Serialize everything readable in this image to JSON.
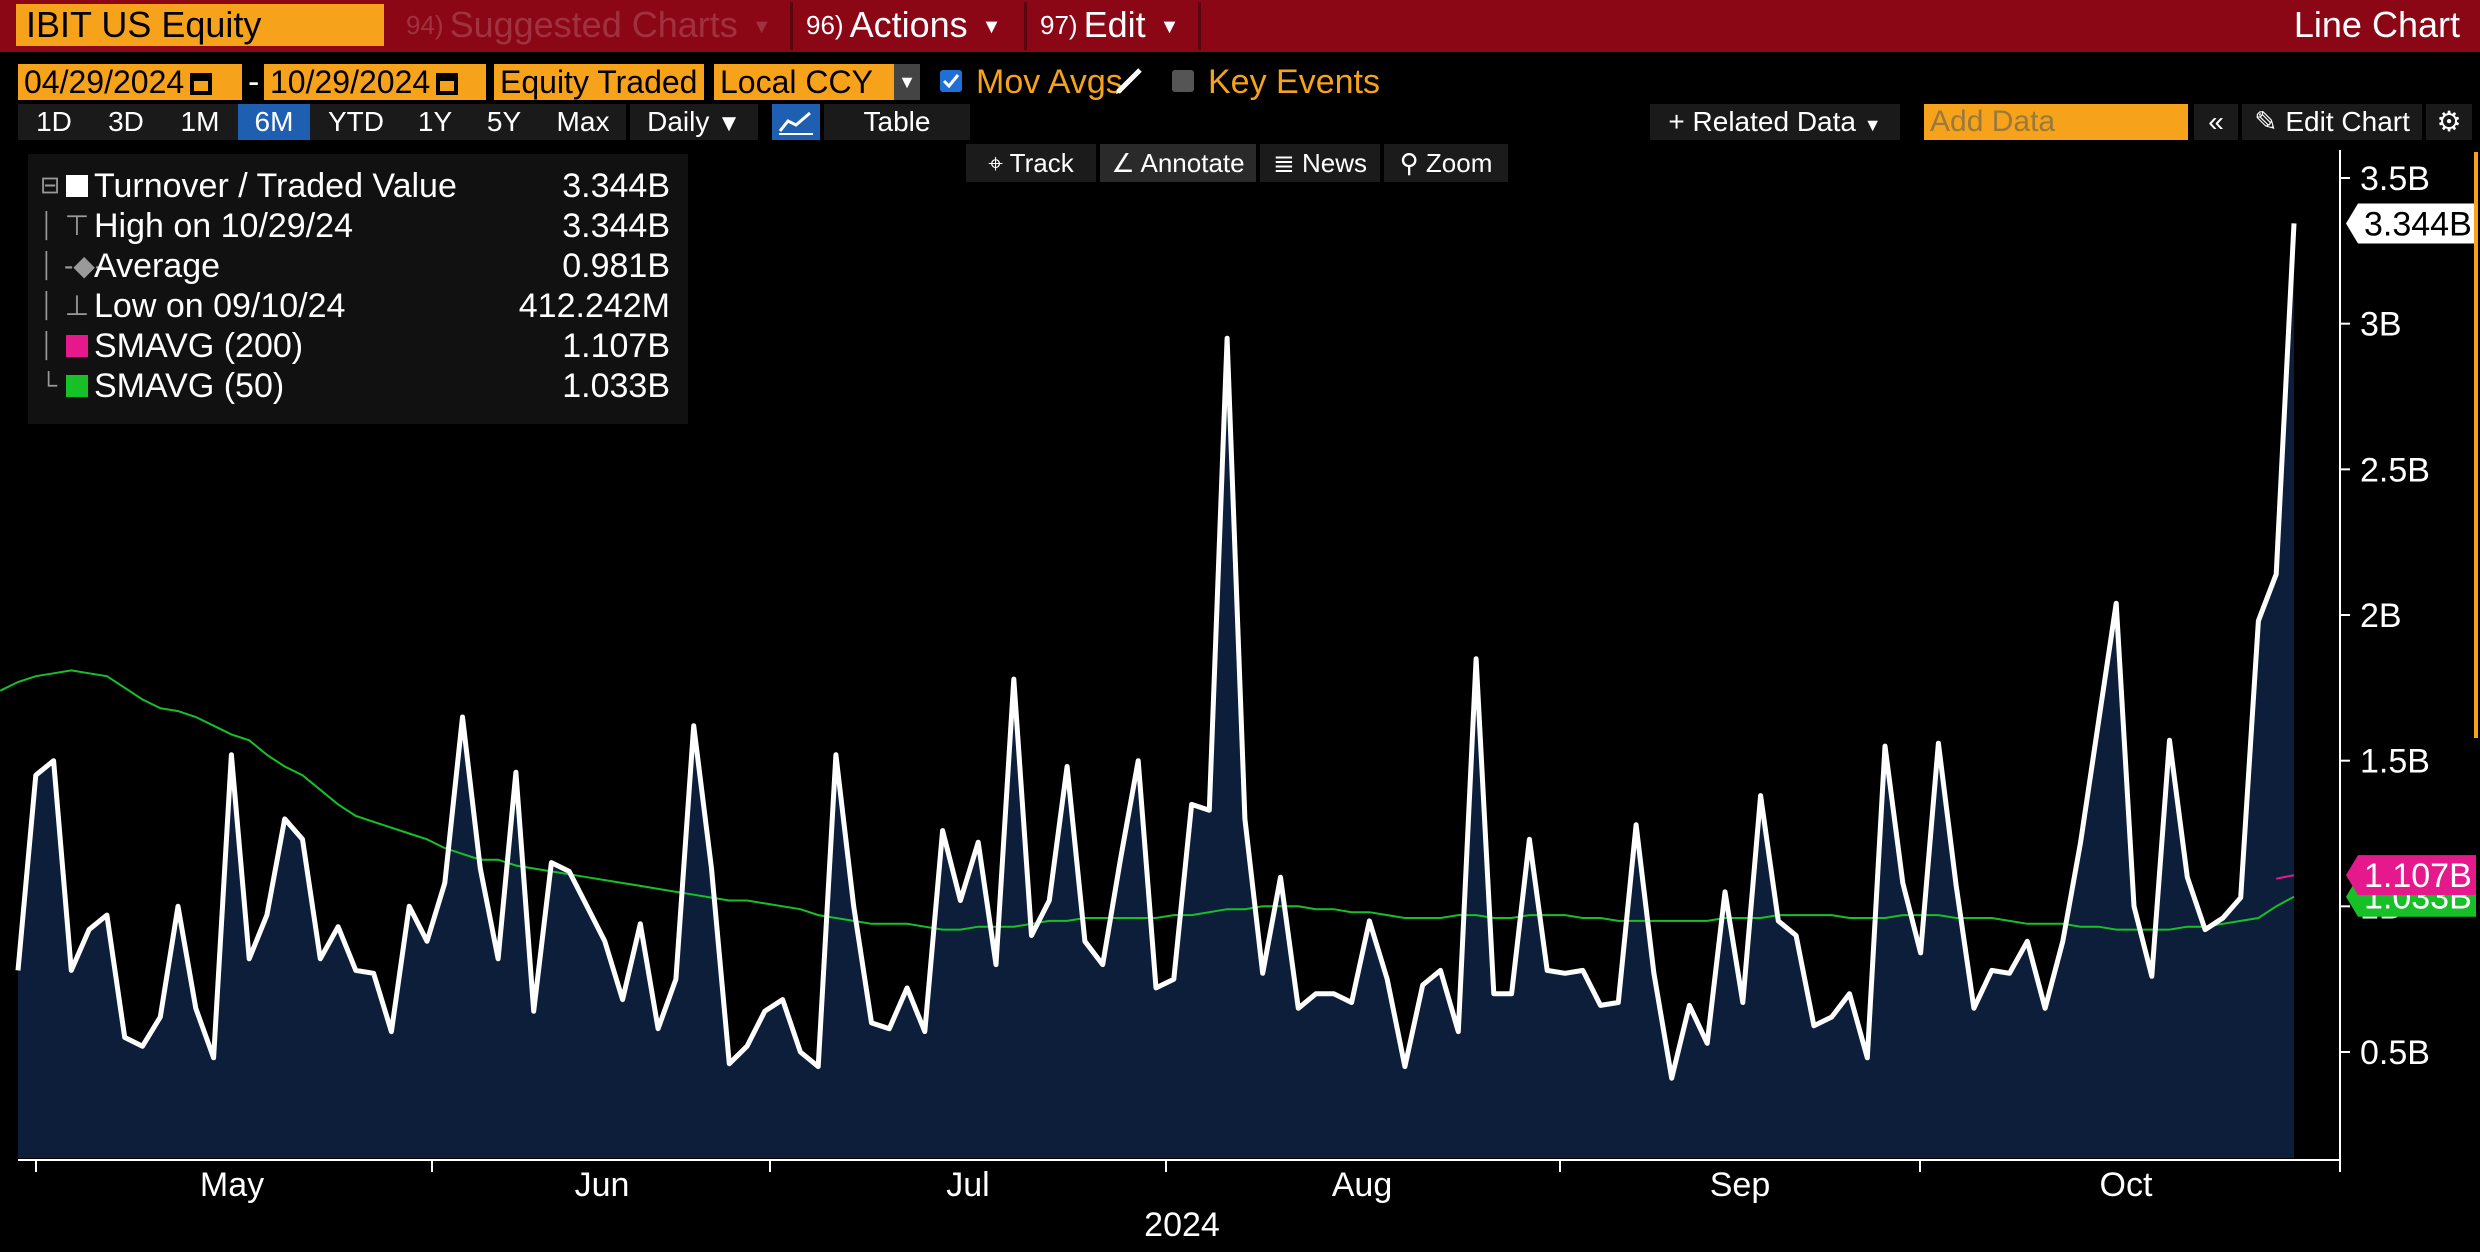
{
  "header": {
    "ticker": "IBIT US Equity",
    "suggested_num": "94)",
    "suggested_label": "Suggested Charts",
    "actions_num": "96)",
    "actions_label": "Actions",
    "edit_num": "97)",
    "edit_label": "Edit",
    "chart_type": "Line Chart"
  },
  "controls": {
    "start_date": "04/29/2024",
    "date_sep": "-",
    "end_date": "10/29/2024",
    "field": "Equity Traded",
    "currency": "Local CCY",
    "mov_avgs_label": "Mov Avgs",
    "mov_avgs_checked": true,
    "key_events_label": "Key Events",
    "key_events_checked": false
  },
  "periods": [
    "1D",
    "3D",
    "1M",
    "6M",
    "YTD",
    "1Y",
    "5Y",
    "Max"
  ],
  "selected_period": "6M",
  "frequency": "Daily",
  "table_label": "Table",
  "related_data_label": "Related Data",
  "add_data_placeholder": "Add Data",
  "edit_chart_label": "Edit Chart",
  "tools": [
    "Track",
    "Annotate",
    "News",
    "Zoom"
  ],
  "legend": [
    {
      "label": "Turnover / Traded Value",
      "value": "3.344B",
      "color": "#ffffff"
    },
    {
      "label": "High on 10/29/24",
      "value": "3.344B"
    },
    {
      "label": "Average",
      "value": "0.981B"
    },
    {
      "label": "Low on 09/10/24",
      "value": "412.242M"
    },
    {
      "label": "SMAVG (200)",
      "value": "1.107B",
      "color": "#e6198c"
    },
    {
      "label": "SMAVG (50)",
      "value": "1.033B",
      "color": "#18c028"
    }
  ],
  "colors": {
    "accent_orange": "#f7a21b",
    "header_red": "#8b0716",
    "area_fill": "#0c1e3a",
    "line_white": "#ffffff",
    "sma200": "#e6198c",
    "sma50": "#18c028",
    "selected_blue": "#1f5fb2"
  },
  "chart_data": {
    "type": "area",
    "x_labels": [
      "May",
      "Jun",
      "Jul",
      "Aug",
      "Sep",
      "Oct"
    ],
    "x_year": "2024",
    "y_ticks": [
      0.5,
      1.0,
      1.5,
      2.0,
      2.5,
      3.0,
      3.5
    ],
    "y_tick_labels": [
      "0.5B",
      "1B",
      "1.5B",
      "2B",
      "2.5B",
      "3B",
      "3.5B"
    ],
    "ylim": [
      0.1,
      3.6
    ],
    "ylabel_unit": "B",
    "last_value_labels": {
      "turnover": "3.344B",
      "sma200": "1.107B",
      "sma50": "1.033B"
    },
    "series": [
      {
        "name": "Turnover / Traded Value",
        "values": [
          0.78,
          1.45,
          1.5,
          0.78,
          0.92,
          0.97,
          0.55,
          0.52,
          0.62,
          1.0,
          0.65,
          0.48,
          1.52,
          0.82,
          0.97,
          1.3,
          1.23,
          0.82,
          0.93,
          0.78,
          0.77,
          0.57,
          1.0,
          0.88,
          1.08,
          1.65,
          1.13,
          0.82,
          1.46,
          0.64,
          1.15,
          1.12,
          1.0,
          0.88,
          0.68,
          0.94,
          0.58,
          0.75,
          1.62,
          1.13,
          0.46,
          0.52,
          0.64,
          0.68,
          0.5,
          0.45,
          1.52,
          1.0,
          0.6,
          0.58,
          0.72,
          0.57,
          1.26,
          1.02,
          1.22,
          0.8,
          1.78,
          0.9,
          1.02,
          1.48,
          0.88,
          0.8,
          1.16,
          1.5,
          0.72,
          0.75,
          1.35,
          1.33,
          2.95,
          1.3,
          0.77,
          1.1,
          0.65,
          0.7,
          0.7,
          0.67,
          0.95,
          0.75,
          0.45,
          0.73,
          0.78,
          0.57,
          1.85,
          0.7,
          0.7,
          1.23,
          0.78,
          0.77,
          0.78,
          0.66,
          0.67,
          1.28,
          0.77,
          0.41,
          0.66,
          0.53,
          1.05,
          0.67,
          1.38,
          0.95,
          0.9,
          0.59,
          0.62,
          0.7,
          0.48,
          1.55,
          1.08,
          0.84,
          1.56,
          1.07,
          0.65,
          0.78,
          0.77,
          0.88,
          0.65,
          0.88,
          1.22,
          1.63,
          2.04,
          1.0,
          0.76,
          1.57,
          1.1,
          0.92,
          0.96,
          1.03,
          1.98,
          2.14,
          3.344
        ]
      },
      {
        "name": "SMAVG (200)",
        "values": [
          1.095,
          1.107
        ]
      },
      {
        "name": "SMAVG (50)",
        "values": [
          1.74,
          1.77,
          1.79,
          1.8,
          1.81,
          1.8,
          1.79,
          1.75,
          1.71,
          1.68,
          1.67,
          1.65,
          1.62,
          1.59,
          1.57,
          1.52,
          1.48,
          1.45,
          1.4,
          1.35,
          1.31,
          1.29,
          1.27,
          1.25,
          1.23,
          1.2,
          1.18,
          1.16,
          1.16,
          1.14,
          1.13,
          1.12,
          1.11,
          1.1,
          1.09,
          1.08,
          1.07,
          1.06,
          1.05,
          1.04,
          1.03,
          1.02,
          1.02,
          1.01,
          1.0,
          0.99,
          0.97,
          0.96,
          0.95,
          0.94,
          0.94,
          0.94,
          0.93,
          0.92,
          0.92,
          0.93,
          0.93,
          0.93,
          0.94,
          0.95,
          0.95,
          0.96,
          0.96,
          0.96,
          0.96,
          0.96,
          0.97,
          0.97,
          0.98,
          0.99,
          0.99,
          1.0,
          1.0,
          1.0,
          0.99,
          0.99,
          0.98,
          0.98,
          0.97,
          0.96,
          0.96,
          0.96,
          0.97,
          0.97,
          0.96,
          0.96,
          0.97,
          0.97,
          0.97,
          0.96,
          0.96,
          0.95,
          0.95,
          0.95,
          0.95,
          0.95,
          0.95,
          0.96,
          0.96,
          0.96,
          0.97,
          0.97,
          0.97,
          0.97,
          0.96,
          0.96,
          0.96,
          0.97,
          0.97,
          0.97,
          0.96,
          0.96,
          0.96,
          0.95,
          0.94,
          0.94,
          0.94,
          0.93,
          0.93,
          0.92,
          0.92,
          0.92,
          0.92,
          0.93,
          0.93,
          0.94,
          0.95,
          0.96,
          1.0,
          1.033
        ]
      }
    ],
    "grid": false,
    "legend_position": "top-left"
  }
}
